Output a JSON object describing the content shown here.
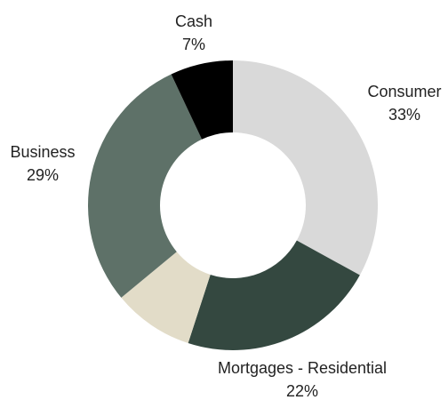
{
  "chart_data": {
    "type": "donut",
    "categories": [
      "Consumer",
      "Mortgages - Residential",
      null,
      "Business",
      "Cash"
    ],
    "values": [
      33,
      22,
      9,
      29,
      7
    ],
    "value_labels": [
      "33%",
      "22%",
      null,
      "29%",
      "7%"
    ],
    "colors": [
      "#d9d9d9",
      "#344840",
      "#e2dcc8",
      "#5e7168",
      "#000000"
    ]
  }
}
